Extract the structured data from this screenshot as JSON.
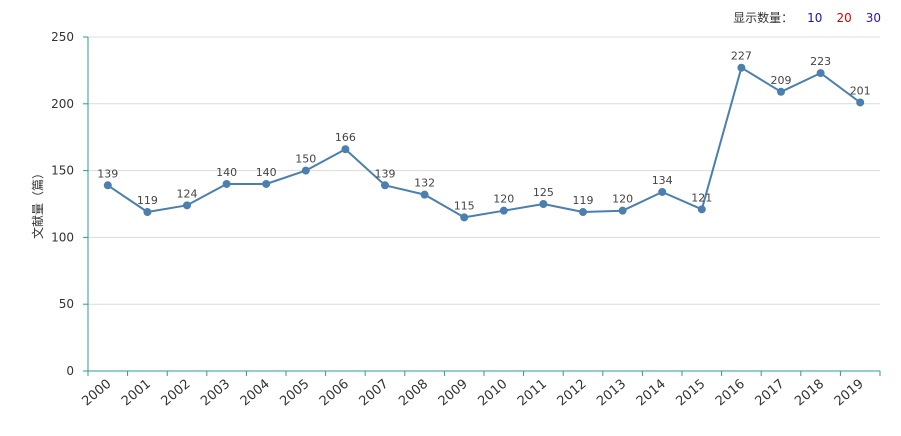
{
  "controls": {
    "display_count_label": "显示数量：",
    "options": [
      {
        "label": "10",
        "color": "#1111cc"
      },
      {
        "label": "20",
        "color": "#dd0000"
      },
      {
        "label": "30",
        "color": "#3311aa"
      }
    ]
  },
  "chart_data": {
    "type": "line",
    "title": "",
    "xlabel": "",
    "ylabel": "文献量（篇）",
    "x": [
      "2000",
      "2001",
      "2002",
      "2003",
      "2004",
      "2005",
      "2006",
      "2007",
      "2008",
      "2009",
      "2010",
      "2011",
      "2012",
      "2013",
      "2014",
      "2015",
      "2016",
      "2017",
      "2018",
      "2019"
    ],
    "series": [
      {
        "values": [
          139,
          119,
          124,
          140,
          140,
          150,
          166,
          139,
          132,
          115,
          120,
          125,
          119,
          120,
          134,
          121,
          227,
          209,
          223,
          201
        ]
      }
    ],
    "ylim": [
      0,
      250
    ],
    "yticks": [
      0,
      50,
      100,
      150,
      200,
      250
    ],
    "grid": true,
    "data_labels": true,
    "line_color": "#4a7fae",
    "axis_color": "#2a9d8f",
    "grid_color": "#dcdcdc"
  }
}
